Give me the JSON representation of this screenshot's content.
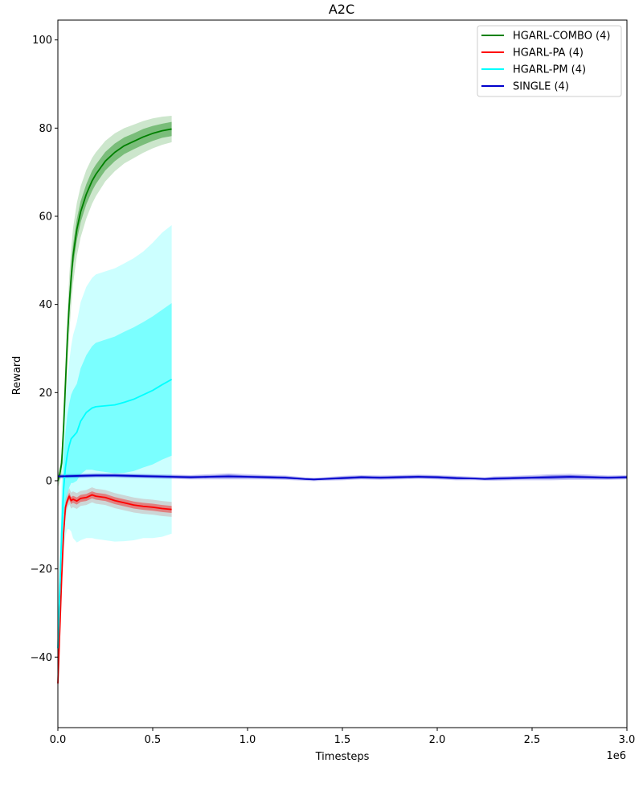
{
  "chart_data": {
    "type": "line",
    "title": "A2C",
    "xlabel": "Timesteps",
    "ylabel": "Reward",
    "x_offset_label": "1e6",
    "xlim": [
      0,
      3.0
    ],
    "ylim": [
      -56,
      104.5
    ],
    "x_ticks": [
      0.0,
      0.5,
      1.0,
      1.5,
      2.0,
      2.5,
      3.0
    ],
    "x_tick_labels": [
      "0.0",
      "0.5",
      "1.0",
      "1.5",
      "2.0",
      "2.5",
      "3.0"
    ],
    "y_ticks": [
      -40,
      -20,
      0,
      20,
      40,
      60,
      80,
      100
    ],
    "y_tick_labels": [
      "−40",
      "−20",
      "0",
      "20",
      "40",
      "60",
      "80",
      "100"
    ],
    "grid": false,
    "legend_position": "top-right",
    "series": [
      {
        "name": "HGARL-COMBO (4)",
        "color": "#008000",
        "x": [
          0.0,
          0.01,
          0.02,
          0.03,
          0.04,
          0.05,
          0.06,
          0.07,
          0.08,
          0.1,
          0.12,
          0.15,
          0.18,
          0.2,
          0.25,
          0.3,
          0.35,
          0.4,
          0.45,
          0.5,
          0.55,
          0.6
        ],
        "y": [
          0.0,
          1.5,
          4.0,
          12.0,
          22.0,
          32.0,
          40.0,
          46.0,
          51.0,
          57.0,
          61.0,
          65.0,
          68.0,
          69.5,
          72.5,
          74.5,
          76.0,
          77.0,
          78.0,
          78.8,
          79.4,
          79.8
        ],
        "band_inner": [
          0.6,
          0.8,
          1.0,
          1.5,
          2.0,
          2.5,
          2.6,
          2.6,
          2.5,
          2.4,
          2.4,
          2.3,
          2.3,
          2.2,
          2.1,
          2.0,
          1.9,
          1.8,
          1.8,
          1.7,
          1.6,
          1.6
        ],
        "band_outer": [
          1.5,
          2.0,
          2.5,
          4.0,
          5.0,
          6.0,
          6.5,
          6.5,
          6.3,
          6.0,
          5.8,
          5.5,
          5.2,
          5.0,
          4.6,
          4.3,
          4.0,
          3.8,
          3.6,
          3.4,
          3.2,
          3.0
        ]
      },
      {
        "name": "HGARL-PA (4)",
        "color": "#ff0000",
        "x": [
          0.0,
          0.005,
          0.01,
          0.02,
          0.03,
          0.04,
          0.05,
          0.06,
          0.07,
          0.08,
          0.1,
          0.12,
          0.15,
          0.18,
          0.2,
          0.25,
          0.3,
          0.35,
          0.4,
          0.45,
          0.5,
          0.55,
          0.6
        ],
        "y": [
          -46.0,
          -40.0,
          -34.0,
          -22.0,
          -12.0,
          -6.0,
          -4.5,
          -3.5,
          -4.5,
          -4.2,
          -4.6,
          -4.0,
          -3.8,
          -3.2,
          -3.5,
          -3.8,
          -4.5,
          -5.0,
          -5.5,
          -5.8,
          -6.0,
          -6.3,
          -6.5
        ],
        "band_inner": [
          2.0,
          2.0,
          2.0,
          1.5,
          1.2,
          1.0,
          0.8,
          0.8,
          0.8,
          0.8,
          0.8,
          0.8,
          0.8,
          0.8,
          0.8,
          0.8,
          0.8,
          0.8,
          0.8,
          0.8,
          0.8,
          0.8,
          0.8
        ],
        "band_outer": [
          3.0,
          3.0,
          3.0,
          2.5,
          2.2,
          2.0,
          1.8,
          1.8,
          1.8,
          1.8,
          1.8,
          1.7,
          1.7,
          1.7,
          1.7,
          1.7,
          1.7,
          1.7,
          1.7,
          1.7,
          1.7,
          1.7,
          1.7
        ]
      },
      {
        "name": "HGARL-PM (4)",
        "color": "#00ffff",
        "x": [
          0.0,
          0.01,
          0.02,
          0.03,
          0.04,
          0.05,
          0.06,
          0.07,
          0.08,
          0.1,
          0.12,
          0.15,
          0.18,
          0.2,
          0.25,
          0.3,
          0.35,
          0.4,
          0.45,
          0.5,
          0.55,
          0.6
        ],
        "y": [
          -38.0,
          -25.0,
          -12.0,
          -2.0,
          3.0,
          6.0,
          8.0,
          9.5,
          10.0,
          11.0,
          13.5,
          15.5,
          16.5,
          16.8,
          17.0,
          17.2,
          17.8,
          18.5,
          19.5,
          20.5,
          21.8,
          23.0
        ],
        "band_inner": [
          3.0,
          4.0,
          6.0,
          7.0,
          8.0,
          9.0,
          9.5,
          10.0,
          10.5,
          11.0,
          12.0,
          13.0,
          14.0,
          14.5,
          15.0,
          15.5,
          16.0,
          16.3,
          16.5,
          16.8,
          17.0,
          17.3
        ],
        "band_outer": [
          6.0,
          8.0,
          12.0,
          14.0,
          15.5,
          17.0,
          19.0,
          21.0,
          23.0,
          25.0,
          27.0,
          28.5,
          29.5,
          30.0,
          30.5,
          31.0,
          31.5,
          32.0,
          32.5,
          33.5,
          34.5,
          35.0
        ]
      },
      {
        "name": "SINGLE (4)",
        "color": "#0000cc",
        "x": [
          0.0,
          0.1,
          0.2,
          0.3,
          0.4,
          0.5,
          0.6,
          0.7,
          0.8,
          0.9,
          1.0,
          1.1,
          1.2,
          1.3,
          1.35,
          1.4,
          1.5,
          1.6,
          1.7,
          1.8,
          1.9,
          2.0,
          2.1,
          2.2,
          2.25,
          2.3,
          2.4,
          2.5,
          2.6,
          2.7,
          2.8,
          2.9,
          3.0
        ],
        "y": [
          1.0,
          1.1,
          1.2,
          1.2,
          1.1,
          1.0,
          0.9,
          0.8,
          0.9,
          1.0,
          0.9,
          0.8,
          0.7,
          0.4,
          0.3,
          0.4,
          0.6,
          0.8,
          0.7,
          0.8,
          0.9,
          0.8,
          0.6,
          0.5,
          0.4,
          0.5,
          0.6,
          0.7,
          0.8,
          0.9,
          0.8,
          0.7,
          0.8
        ],
        "band_inner": [
          0.3,
          0.3,
          0.3,
          0.3,
          0.3,
          0.3,
          0.3,
          0.3,
          0.3,
          0.4,
          0.3,
          0.3,
          0.3,
          0.2,
          0.2,
          0.2,
          0.3,
          0.3,
          0.3,
          0.3,
          0.3,
          0.3,
          0.3,
          0.2,
          0.2,
          0.3,
          0.3,
          0.3,
          0.4,
          0.4,
          0.3,
          0.3,
          0.3
        ],
        "band_outer": [
          0.5,
          0.5,
          0.5,
          0.5,
          0.5,
          0.5,
          0.5,
          0.5,
          0.6,
          0.7,
          0.6,
          0.5,
          0.5,
          0.4,
          0.4,
          0.4,
          0.5,
          0.5,
          0.5,
          0.5,
          0.5,
          0.5,
          0.5,
          0.4,
          0.4,
          0.5,
          0.5,
          0.6,
          0.7,
          0.7,
          0.6,
          0.5,
          0.5
        ]
      }
    ]
  }
}
